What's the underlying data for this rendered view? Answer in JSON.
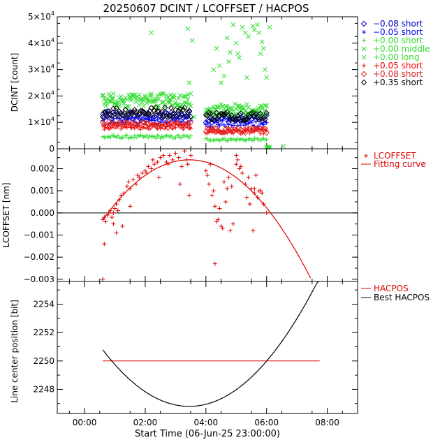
{
  "title": "20250607 DCINT / LCOFFSET / HACPOS",
  "xlabel": "Start Time (06-Jun-25 23:00:00)",
  "x_ticks": [
    "00:00",
    "02:00",
    "04:00",
    "06:00",
    "08:00"
  ],
  "x_tick_hours": [
    0,
    2,
    4,
    6,
    8
  ],
  "x_range_hours": [
    -0.9,
    9.0
  ],
  "chart_data": [
    {
      "type": "scatter",
      "ylabel": "DCINT [count]",
      "ylim": [
        0,
        50000
      ],
      "y_ticks": [
        {
          "value": 0,
          "base": "0",
          "exp": ""
        },
        {
          "value": 10000,
          "base": "1×10",
          "exp": "4"
        },
        {
          "value": 20000,
          "base": "2×10",
          "exp": "4"
        },
        {
          "value": 30000,
          "base": "3×10",
          "exp": "4"
        },
        {
          "value": 40000,
          "base": "4×10",
          "exp": "4"
        },
        {
          "value": 50000,
          "base": "5×10",
          "exp": "4"
        }
      ],
      "legend_position": "outside-right",
      "segments_hours": [
        [
          0.6,
          3.5
        ],
        [
          4.0,
          6.0
        ]
      ],
      "series": [
        {
          "name": "−0.08 short",
          "color": "#0000cc",
          "marker": "diamond",
          "level": [
            12500,
            11500
          ]
        },
        {
          "name": "−0.05 short",
          "color": "#0000ff",
          "marker": "plus",
          "level": [
            10500,
            9500
          ]
        },
        {
          "name": "+0.00 short",
          "color": "#33dd33",
          "marker": "plus",
          "level": [
            4500,
            3500
          ]
        },
        {
          "name": "+0.00 middle",
          "color": "#33dd33",
          "marker": "cross",
          "level": [
            18000,
            14500
          ]
        },
        {
          "name": "+0.00 long",
          "color": "#33dd33",
          "marker": "cross",
          "level": [
            18500,
            15000
          ]
        },
        {
          "name": "+0.05 short",
          "color": "#ff0000",
          "marker": "plus",
          "level": [
            8500,
            6500
          ]
        },
        {
          "name": "+0.08 short",
          "color": "#dd2222",
          "marker": "diamond",
          "level": [
            9000,
            7000
          ]
        },
        {
          "name": "+0.35 short",
          "color": "#000000",
          "marker": "diamond",
          "level": [
            14000,
            12500
          ]
        }
      ],
      "outliers": [
        {
          "x": 2.2,
          "y": 44000
        },
        {
          "x": 3.4,
          "y": 45500
        },
        {
          "x": 3.55,
          "y": 41000
        },
        {
          "x": 3.45,
          "y": 25000
        },
        {
          "x": 3.6,
          "y": 12000
        },
        {
          "x": 4.35,
          "y": 38000
        },
        {
          "x": 4.45,
          "y": 31500
        },
        {
          "x": 4.5,
          "y": 25000
        },
        {
          "x": 4.6,
          "y": 27500
        },
        {
          "x": 4.7,
          "y": 42000
        },
        {
          "x": 4.75,
          "y": 33000
        },
        {
          "x": 4.9,
          "y": 47000
        },
        {
          "x": 5.0,
          "y": 40000
        },
        {
          "x": 5.05,
          "y": 36000
        },
        {
          "x": 5.1,
          "y": 34500
        },
        {
          "x": 5.2,
          "y": 46000
        },
        {
          "x": 5.3,
          "y": 44000
        },
        {
          "x": 5.4,
          "y": 42500
        },
        {
          "x": 5.55,
          "y": 46500
        },
        {
          "x": 5.6,
          "y": 45000
        },
        {
          "x": 5.7,
          "y": 47000
        },
        {
          "x": 5.75,
          "y": 44000
        },
        {
          "x": 5.8,
          "y": 36000
        },
        {
          "x": 5.85,
          "y": 40500
        },
        {
          "x": 5.9,
          "y": 38000
        },
        {
          "x": 5.95,
          "y": 30000
        },
        {
          "x": 6.0,
          "y": 27000
        },
        {
          "x": 6.1,
          "y": 46000
        },
        {
          "x": 6.55,
          "y": 1000
        },
        {
          "x": 4.25,
          "y": 30000
        },
        {
          "x": 4.8,
          "y": 36500
        },
        {
          "x": 5.35,
          "y": 27000
        }
      ]
    },
    {
      "type": "scatter",
      "ylabel": "LCOFFSET [nm]",
      "ylim": [
        -0.0031,
        0.0029
      ],
      "y_ticks": [
        {
          "value": -0.003,
          "label": "−0.003"
        },
        {
          "value": -0.002,
          "label": "−0.002"
        },
        {
          "value": -0.001,
          "label": "−0.001"
        },
        {
          "value": 0.0,
          "label": "0.000"
        },
        {
          "value": 0.001,
          "label": "0.001"
        },
        {
          "value": 0.002,
          "label": "0.002"
        }
      ],
      "zero_line": true,
      "series": [
        {
          "name": "LCOFFSET",
          "color": "#dd0000",
          "marker": "plus",
          "x": [
            0.6,
            0.65,
            0.7,
            0.75,
            0.8,
            0.85,
            0.9,
            0.95,
            1.0,
            1.05,
            1.1,
            1.15,
            1.2,
            1.3,
            1.4,
            1.45,
            1.5,
            1.6,
            1.7,
            1.75,
            1.8,
            1.9,
            2.0,
            2.1,
            2.2,
            2.25,
            2.3,
            2.4,
            2.5,
            2.6,
            2.7,
            2.75,
            2.8,
            2.9,
            3.0,
            3.1,
            3.2,
            3.3,
            3.35,
            3.4,
            3.5,
            0.65,
            0.6,
            0.95,
            1.05,
            1.25,
            1.5,
            2.05,
            2.45,
            3.15,
            3.45,
            4.0,
            4.1,
            4.2,
            4.3,
            4.4,
            4.5,
            4.6,
            4.7,
            4.8,
            4.9,
            5.0,
            5.05,
            5.1,
            5.2,
            5.3,
            5.4,
            5.5,
            5.6,
            5.7,
            5.8,
            5.9,
            6.0,
            4.05,
            4.15,
            4.25,
            4.35,
            4.45,
            4.55,
            4.65,
            4.75,
            4.85,
            5.15,
            5.35,
            5.45,
            5.55,
            5.65,
            5.75,
            5.85,
            4.3,
            5.0,
            5.6
          ],
          "y": [
            -0.0003,
            -0.0002,
            -0.0004,
            -0.0001,
            0.0,
            0.0001,
            -0.0002,
            0.0,
            0.0002,
            0.0004,
            0.0001,
            0.0006,
            0.0008,
            0.0009,
            0.0012,
            0.0014,
            0.0011,
            0.0015,
            0.0013,
            0.0017,
            0.0016,
            0.0018,
            0.0019,
            0.0021,
            0.002,
            0.0024,
            0.0022,
            0.0023,
            0.0025,
            0.0026,
            0.0023,
            0.0022,
            0.0026,
            0.0024,
            0.0027,
            0.0025,
            0.0021,
            0.0028,
            0.0024,
            0.0022,
            0.0026,
            -0.0014,
            -0.003,
            -0.0005,
            -0.0009,
            -0.0006,
            0.0003,
            0.0018,
            0.0016,
            0.0013,
            0.0008,
            0.0019,
            0.0013,
            0.0008,
            0.0003,
            -0.0003,
            -0.0006,
            0.0014,
            0.0011,
            -0.0008,
            -0.0005,
            0.0026,
            0.0024,
            0.002,
            0.0018,
            0.0013,
            0.0016,
            0.0011,
            0.0009,
            0.0007,
            0.001,
            0.0004,
            0.0,
            0.0017,
            0.0022,
            0.001,
            -0.0004,
            0.0002,
            -0.0007,
            0.0005,
            0.0016,
            0.0012,
            0.0021,
            0.0007,
            0.0004,
            -0.0008,
            0.0017,
            0.001,
            0.0009,
            -0.0023,
            0.0022,
            0.0011
          ]
        },
        {
          "name": "Fitting curve",
          "color": "#dd0000",
          "marker": "line",
          "quadratic": {
            "vertex_x": 3.45,
            "vertex_y": 0.0024,
            "a": -0.000334
          },
          "x_from": 0.6,
          "x_to": 7.45
        }
      ]
    },
    {
      "type": "line",
      "ylabel": "Line center position [bit]",
      "ylim": [
        2246.3,
        2255.6
      ],
      "y_ticks": [
        {
          "value": 2248,
          "label": "2248"
        },
        {
          "value": 2250,
          "label": "2250"
        },
        {
          "value": 2252,
          "label": "2252"
        },
        {
          "value": 2254,
          "label": "2254"
        }
      ],
      "series": [
        {
          "name": "HACPOS",
          "color": "#dd0000",
          "x": [
            0.6,
            7.75
          ],
          "y": [
            2250.0,
            2250.0
          ]
        },
        {
          "name": "Best HACPOS",
          "color": "#000000",
          "quadratic": {
            "vertex_x": 3.45,
            "vertex_y": 2246.8,
            "a": 0.4909
          },
          "x_from": 0.6,
          "x_to": 7.75
        }
      ]
    }
  ]
}
